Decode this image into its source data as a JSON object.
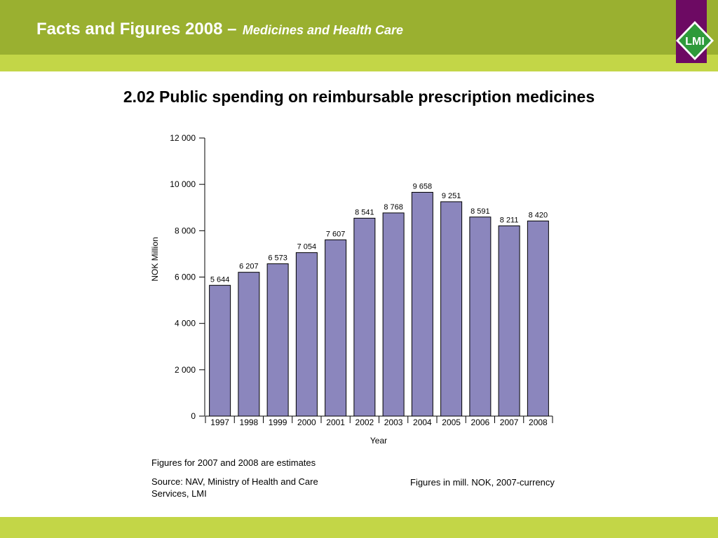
{
  "header": {
    "title": "Facts and Figures 2008 –",
    "subtitle": "Medicines and Health Care",
    "logo_text": "LMI"
  },
  "colors": {
    "header_green": "#9ab030",
    "stripe_green": "#c3d647",
    "logo_purple": "#6d0a63",
    "logo_green": "#2e9a3a",
    "bar_fill": "#8b86bd"
  },
  "chart_data": {
    "type": "bar",
    "title": "2.02 Public spending on reimbursable prescription medicines",
    "categories": [
      "1997",
      "1998",
      "1999",
      "2000",
      "2001",
      "2002",
      "2003",
      "2004",
      "2005",
      "2006",
      "2007",
      "2008"
    ],
    "values": [
      5644,
      6207,
      6573,
      7054,
      7607,
      8541,
      8768,
      9658,
      9251,
      8591,
      8211,
      8420
    ],
    "value_labels": [
      "5 644",
      "6 207",
      "6 573",
      "7 054",
      "7 607",
      "8 541",
      "8 768",
      "9 658",
      "9 251",
      "8 591",
      "8 211",
      "8 420"
    ],
    "xlabel": "Year",
    "ylabel": "NOK Million",
    "ylim": [
      0,
      12000
    ],
    "yticks": [
      0,
      2000,
      4000,
      6000,
      8000,
      10000,
      12000
    ],
    "ytick_labels": [
      "0",
      "2 000",
      "4 000",
      "6 000",
      "8 000",
      "10 000",
      "12 000"
    ],
    "grid": false,
    "legend": "none"
  },
  "notes": {
    "estimates": "Figures for 2007 and 2008 are estimates",
    "source": "Source: NAV, Ministry of Health and Care Services, LMI",
    "currency": "Figures in mill. NOK, 2007-currency"
  }
}
